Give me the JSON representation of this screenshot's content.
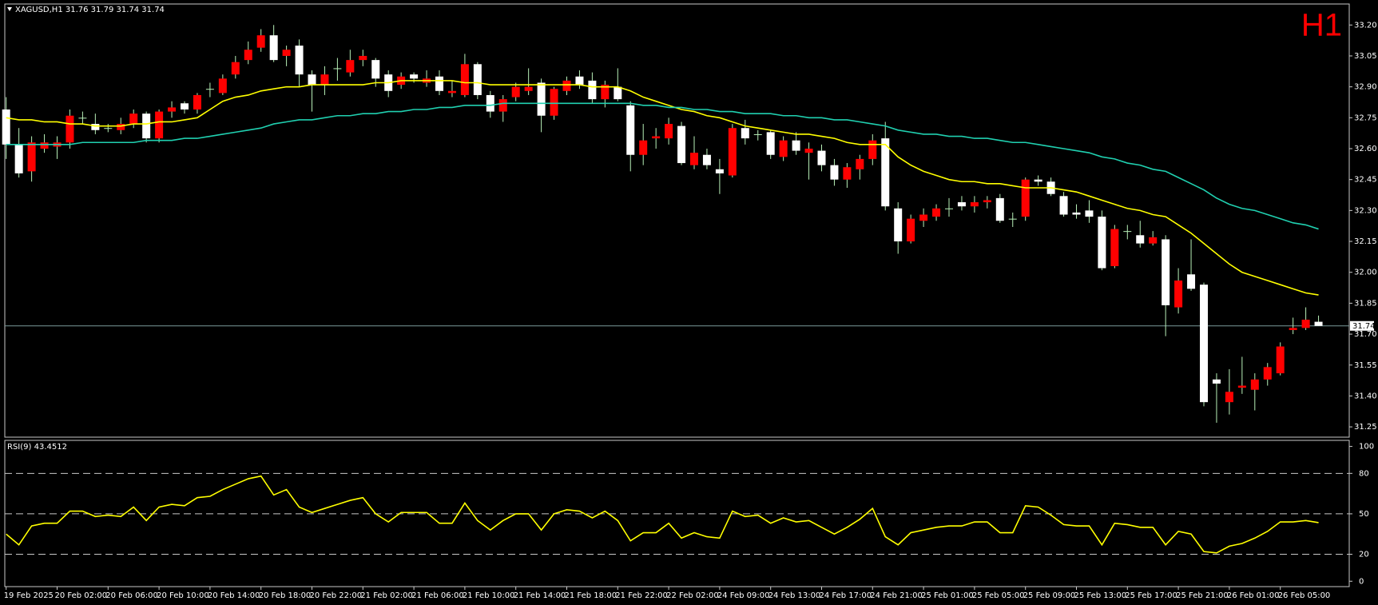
{
  "chart_data": [
    {
      "type": "candlestick",
      "title": "XAGUSD,H1  31.76 31.79 31.74 31.74",
      "annotation": "H1",
      "categories": [
        "19 Feb 2025",
        null,
        null,
        null,
        "20 Feb 02:00",
        null,
        null,
        null,
        "20 Feb 06:00",
        null,
        null,
        null,
        "20 Feb 10:00",
        null,
        null,
        null,
        "20 Feb 14:00",
        null,
        null,
        null,
        "20 Feb 18:00",
        null,
        null,
        null,
        "20 Feb 22:00",
        null,
        null,
        null,
        "21 Feb 02:00",
        null,
        null,
        null,
        "21 Feb 06:00",
        null,
        null,
        null,
        "21 Feb 10:00",
        null,
        null,
        null,
        "21 Feb 14:00",
        null,
        null,
        null,
        "21 Feb 18:00",
        null,
        null,
        null,
        "21 Feb 22:00",
        null,
        null,
        null,
        "22 Feb 02:00",
        null,
        null,
        null,
        "24 Feb 09:00",
        null,
        null,
        null,
        "24 Feb 13:00",
        null,
        null,
        null,
        "24 Feb 17:00",
        null,
        null,
        null,
        "24 Feb 21:00",
        null,
        null,
        null,
        "25 Feb 01:00",
        null,
        null,
        null,
        "25 Feb 05:00",
        null,
        null,
        null,
        "25 Feb 09:00",
        null,
        null,
        null,
        "25 Feb 13:00",
        null,
        null,
        null,
        "25 Feb 17:00",
        null,
        null,
        null,
        "25 Feb 21:00",
        null,
        null,
        null,
        "26 Feb 01:00",
        null,
        null,
        null,
        "26 Feb 05:00",
        null,
        null,
        null
      ],
      "open": [
        32.79,
        32.62,
        32.49,
        32.6,
        32.61,
        32.63,
        32.75,
        32.72,
        32.7,
        32.69,
        32.72,
        32.77,
        32.65,
        32.78,
        32.82,
        32.79,
        32.89,
        32.87,
        32.96,
        33.03,
        33.09,
        33.15,
        33.05,
        33.1,
        32.96,
        32.91,
        32.99,
        32.97,
        33.03,
        33.03,
        32.96,
        32.91,
        32.96,
        32.92,
        32.95,
        32.87,
        32.86,
        33.01,
        32.86,
        32.78,
        32.85,
        32.88,
        32.92,
        32.76,
        32.88,
        32.95,
        32.93,
        32.84,
        32.9,
        32.81,
        32.57,
        32.65,
        32.65,
        32.71,
        32.52,
        32.57,
        32.5,
        32.47,
        32.7,
        32.67,
        32.68,
        32.56,
        32.64,
        32.58,
        32.59,
        32.52,
        32.45,
        32.5,
        32.55,
        32.65,
        32.31,
        32.15,
        32.25,
        32.27,
        32.31,
        32.34,
        32.32,
        32.34,
        32.36,
        32.26,
        32.27,
        32.45,
        32.44,
        32.37,
        32.29,
        32.3,
        32.27,
        32.03,
        32.2,
        32.18,
        32.14,
        32.16,
        31.83,
        31.99,
        31.94,
        31.48,
        31.37,
        31.44,
        31.43,
        31.48,
        31.51,
        31.72,
        31.73,
        31.76
      ],
      "high": [
        32.85,
        32.7,
        32.66,
        32.67,
        32.66,
        32.79,
        32.78,
        32.77,
        32.72,
        32.75,
        32.79,
        32.78,
        32.79,
        32.83,
        32.83,
        32.87,
        32.92,
        32.96,
        33.05,
        33.12,
        33.18,
        33.2,
        33.1,
        33.13,
        32.98,
        33.0,
        33.04,
        33.08,
        33.08,
        33.04,
        32.98,
        32.97,
        32.97,
        32.98,
        32.98,
        32.93,
        33.06,
        33.02,
        32.88,
        32.86,
        32.92,
        32.99,
        32.94,
        32.9,
        32.95,
        32.98,
        32.97,
        32.93,
        32.99,
        32.83,
        32.72,
        32.7,
        32.75,
        32.73,
        32.66,
        32.6,
        32.55,
        32.72,
        32.74,
        32.69,
        32.69,
        32.66,
        32.68,
        32.63,
        32.62,
        32.55,
        32.53,
        32.57,
        32.67,
        32.73,
        32.34,
        32.28,
        32.31,
        32.33,
        32.36,
        32.37,
        32.37,
        32.37,
        32.38,
        32.29,
        32.46,
        32.47,
        32.46,
        32.39,
        32.33,
        32.35,
        32.3,
        32.23,
        32.23,
        32.25,
        32.2,
        32.18,
        32.02,
        32.16,
        31.95,
        31.51,
        31.53,
        31.59,
        31.51,
        31.56,
        31.66,
        31.78,
        31.83,
        31.79
      ],
      "low": [
        32.55,
        32.46,
        32.44,
        32.58,
        32.55,
        32.6,
        32.72,
        32.67,
        32.68,
        32.67,
        32.7,
        32.63,
        32.63,
        32.75,
        32.77,
        32.77,
        32.85,
        32.86,
        32.94,
        33.01,
        33.07,
        33.02,
        33.0,
        32.9,
        32.78,
        32.86,
        32.93,
        32.95,
        33.0,
        32.9,
        32.85,
        32.89,
        32.92,
        32.9,
        32.86,
        32.85,
        32.85,
        32.84,
        32.75,
        32.73,
        32.83,
        32.86,
        32.68,
        32.74,
        32.86,
        32.89,
        32.82,
        32.8,
        32.83,
        32.49,
        32.52,
        32.6,
        32.62,
        32.52,
        32.5,
        32.5,
        32.38,
        32.46,
        32.62,
        32.64,
        32.55,
        32.54,
        32.57,
        32.45,
        32.49,
        32.42,
        32.41,
        32.45,
        32.52,
        32.3,
        32.09,
        32.14,
        32.22,
        32.25,
        32.27,
        32.3,
        32.29,
        32.31,
        32.24,
        32.22,
        32.25,
        32.42,
        32.37,
        32.27,
        32.26,
        32.24,
        32.01,
        32.02,
        32.16,
        32.12,
        32.13,
        31.69,
        31.8,
        31.91,
        31.35,
        31.27,
        31.31,
        31.41,
        31.33,
        31.45,
        31.5,
        31.7,
        31.72,
        31.74
      ],
      "close": [
        32.62,
        32.48,
        32.63,
        32.63,
        32.63,
        32.76,
        32.75,
        32.69,
        32.7,
        32.72,
        32.77,
        32.65,
        32.78,
        32.8,
        32.79,
        32.86,
        32.89,
        32.94,
        33.02,
        33.08,
        33.15,
        33.03,
        33.08,
        32.96,
        32.91,
        32.96,
        32.99,
        33.03,
        33.05,
        32.94,
        32.88,
        32.95,
        32.94,
        32.94,
        32.88,
        32.88,
        33.01,
        32.86,
        32.78,
        32.84,
        32.9,
        32.9,
        32.76,
        32.89,
        32.93,
        32.91,
        32.84,
        32.91,
        32.84,
        32.57,
        32.64,
        32.66,
        32.72,
        32.53,
        32.58,
        32.52,
        32.48,
        32.7,
        32.65,
        32.67,
        32.57,
        32.64,
        32.59,
        32.6,
        32.52,
        32.45,
        32.51,
        32.55,
        32.64,
        32.32,
        32.15,
        32.26,
        32.28,
        32.31,
        32.31,
        32.32,
        32.34,
        32.35,
        32.25,
        32.26,
        32.45,
        32.44,
        32.38,
        32.28,
        32.28,
        32.27,
        32.02,
        32.21,
        32.2,
        32.14,
        32.17,
        31.84,
        31.96,
        31.92,
        31.37,
        31.46,
        31.42,
        31.45,
        31.48,
        31.54,
        31.64,
        31.73,
        31.77,
        31.74
      ],
      "up_color": "#ff0000",
      "down_color": "#ffffff",
      "wick_color": "#b8f0b8",
      "series": [
        {
          "color": "#ffff00",
          "values": [
            32.75,
            32.74,
            32.74,
            32.73,
            32.73,
            32.72,
            32.72,
            32.71,
            32.71,
            32.71,
            32.72,
            32.72,
            32.73,
            32.73,
            32.74,
            32.75,
            32.79,
            32.83,
            32.85,
            32.86,
            32.88,
            32.89,
            32.9,
            32.9,
            32.91,
            32.91,
            32.91,
            32.91,
            32.91,
            32.92,
            32.92,
            32.93,
            32.93,
            32.93,
            32.93,
            32.93,
            32.92,
            32.92,
            32.91,
            32.91,
            32.91,
            32.91,
            32.91,
            32.91,
            32.91,
            32.91,
            32.9,
            32.9,
            32.9,
            32.88,
            32.85,
            32.83,
            32.81,
            32.79,
            32.78,
            32.76,
            32.75,
            32.73,
            32.71,
            32.7,
            32.69,
            32.68,
            32.67,
            32.67,
            32.66,
            32.65,
            32.63,
            32.62,
            32.62,
            32.62,
            32.56,
            32.52,
            32.49,
            32.47,
            32.45,
            32.44,
            32.44,
            32.43,
            32.43,
            32.42,
            32.41,
            32.41,
            32.41,
            32.4,
            32.39,
            32.37,
            32.35,
            32.33,
            32.31,
            32.3,
            32.28,
            32.27,
            32.23,
            32.19,
            32.14,
            32.09,
            32.04,
            32.0,
            31.98,
            31.96,
            31.94,
            31.92,
            31.9,
            31.89
          ]
        },
        {
          "color": "#20d0b0",
          "values": [
            32.62,
            32.62,
            32.62,
            32.62,
            32.62,
            32.62,
            32.63,
            32.63,
            32.63,
            32.63,
            32.63,
            32.64,
            32.64,
            32.64,
            32.65,
            32.65,
            32.66,
            32.67,
            32.68,
            32.69,
            32.7,
            32.72,
            32.73,
            32.74,
            32.74,
            32.75,
            32.76,
            32.76,
            32.77,
            32.77,
            32.78,
            32.78,
            32.79,
            32.79,
            32.8,
            32.8,
            32.81,
            32.81,
            32.81,
            32.82,
            32.82,
            32.82,
            32.82,
            32.82,
            32.82,
            32.82,
            32.82,
            32.82,
            32.82,
            32.82,
            32.81,
            32.81,
            32.8,
            32.8,
            32.79,
            32.79,
            32.78,
            32.78,
            32.77,
            32.77,
            32.77,
            32.76,
            32.76,
            32.75,
            32.75,
            32.74,
            32.74,
            32.73,
            32.72,
            32.71,
            32.69,
            32.68,
            32.67,
            32.67,
            32.66,
            32.66,
            32.65,
            32.65,
            32.64,
            32.63,
            32.63,
            32.62,
            32.61,
            32.6,
            32.59,
            32.58,
            32.56,
            32.55,
            32.53,
            32.52,
            32.5,
            32.49,
            32.46,
            32.43,
            32.4,
            32.36,
            32.33,
            32.31,
            32.3,
            32.28,
            32.26,
            32.24,
            32.23,
            32.21
          ]
        }
      ],
      "current_price": 31.74,
      "current_price_color": "#7a9a9a",
      "ylim": [
        31.2,
        33.3
      ],
      "yticks": [
        {
          "value": 33.2,
          "label": "33.20"
        },
        33.05,
        {
          "value": 32.9,
          "label": "32.90"
        },
        32.75,
        {
          "value": 32.6,
          "label": "32.60"
        },
        32.45,
        {
          "value": 32.3,
          "label": "32.30"
        },
        32.15,
        {
          "value": 32.0,
          "label": "32.00"
        },
        31.85,
        {
          "value": 31.7,
          "label": "31.70"
        },
        31.55,
        {
          "value": 31.4,
          "label": "31.40"
        },
        31.25
      ]
    },
    {
      "type": "line",
      "title": "RSI(9) 43.4512",
      "color": "#ffff00",
      "values": [
        35,
        27,
        41,
        43,
        43,
        52,
        52,
        48,
        49,
        48,
        55,
        45,
        55,
        57,
        56,
        62,
        63,
        68,
        72,
        76,
        78,
        64,
        68,
        55,
        51,
        54,
        57,
        60,
        62,
        50,
        44,
        51,
        51,
        51,
        43,
        43,
        58,
        45,
        38,
        45,
        50,
        50,
        38,
        50,
        53,
        52,
        47,
        52,
        45,
        30,
        36,
        36,
        43,
        32,
        36,
        33,
        32,
        52,
        48,
        49,
        43,
        47,
        44,
        45,
        40,
        35,
        40,
        46,
        54,
        33,
        27,
        36,
        38,
        40,
        41,
        41,
        44,
        44,
        36,
        36,
        56,
        55,
        49,
        42,
        41,
        41,
        27,
        43,
        42,
        40,
        40,
        27,
        37,
        35,
        22,
        21,
        26,
        28,
        32,
        37,
        44,
        44,
        45,
        43.4512
      ],
      "ylim": [
        -4,
        104.5
      ],
      "yticks": [
        100,
        80,
        50,
        20,
        0
      ],
      "levels": [
        80,
        50,
        20
      ]
    }
  ]
}
